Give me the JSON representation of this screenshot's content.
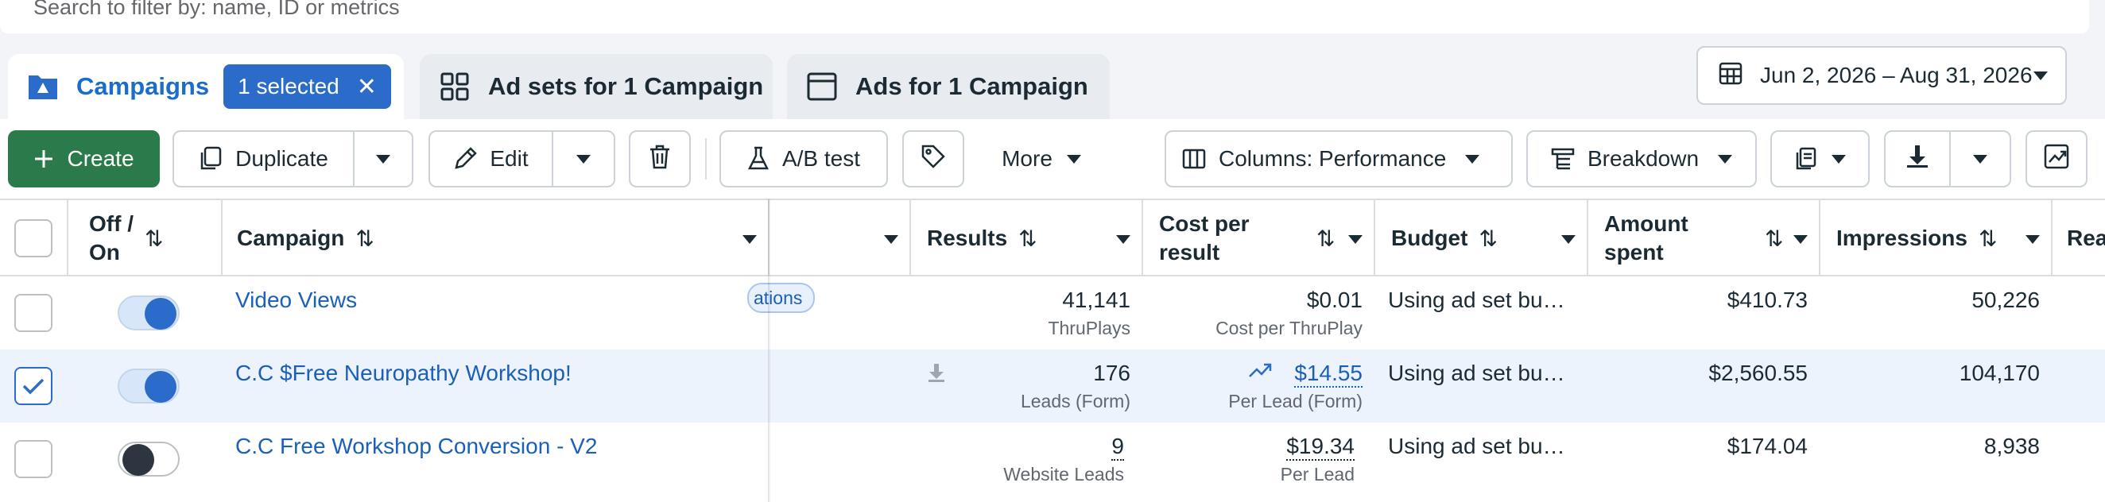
{
  "search": {
    "placeholder": "Search to filter by: name, ID or metrics"
  },
  "tabs": {
    "campaigns": {
      "label": "Campaigns",
      "selected_chip": "1 selected"
    },
    "adsets": {
      "label": "Ad sets for 1 Campaign"
    },
    "ads": {
      "label": "Ads for 1 Campaign"
    }
  },
  "date_range": {
    "label": "Jun 2, 2026 – Aug 31, 2026"
  },
  "toolbar": {
    "create": "Create",
    "duplicate": "Duplicate",
    "edit": "Edit",
    "ab_test": "A/B test",
    "more": "More",
    "columns": "Columns: Performance",
    "breakdown": "Breakdown"
  },
  "table": {
    "headers": {
      "off_on": "Off /\nOn",
      "campaign": "Campaign",
      "results": "Results",
      "cost_per_result": "Cost per\nresult",
      "budget": "Budget",
      "amount_spent": "Amount\nspent",
      "impressions": "Impressions",
      "reach_partial": "Rea"
    },
    "partial_chip": "ations",
    "rows": [
      {
        "name": "Video Views",
        "toggle": "on",
        "selected": false,
        "results": "41,141",
        "results_type": "ThruPlays",
        "cost": "$0.01",
        "cost_type": "Cost per ThruPlay",
        "budget": "Using ad set bu…",
        "spent": "$410.73",
        "impressions": "50,226"
      },
      {
        "name": "C.C $Free Neuropathy Workshop!",
        "toggle": "on",
        "selected": true,
        "results": "176",
        "results_type": "Leads (Form)",
        "cost": "$14.55",
        "cost_type": "Per Lead (Form)",
        "budget": "Using ad set bu…",
        "spent": "$2,560.55",
        "impressions": "104,170"
      },
      {
        "name": "C.C Free Workshop Conversion - V2",
        "toggle": "off",
        "selected": false,
        "results": "9",
        "results_type": "Website Leads",
        "cost": "$19.34",
        "cost_type": "Per Lead",
        "budget": "Using ad set bu…",
        "spent": "$174.04",
        "impressions": "8,938"
      }
    ]
  },
  "colors": {
    "accent": "#2b6bc9",
    "create_green": "#2b7a4b",
    "link": "#1a5fb8"
  }
}
